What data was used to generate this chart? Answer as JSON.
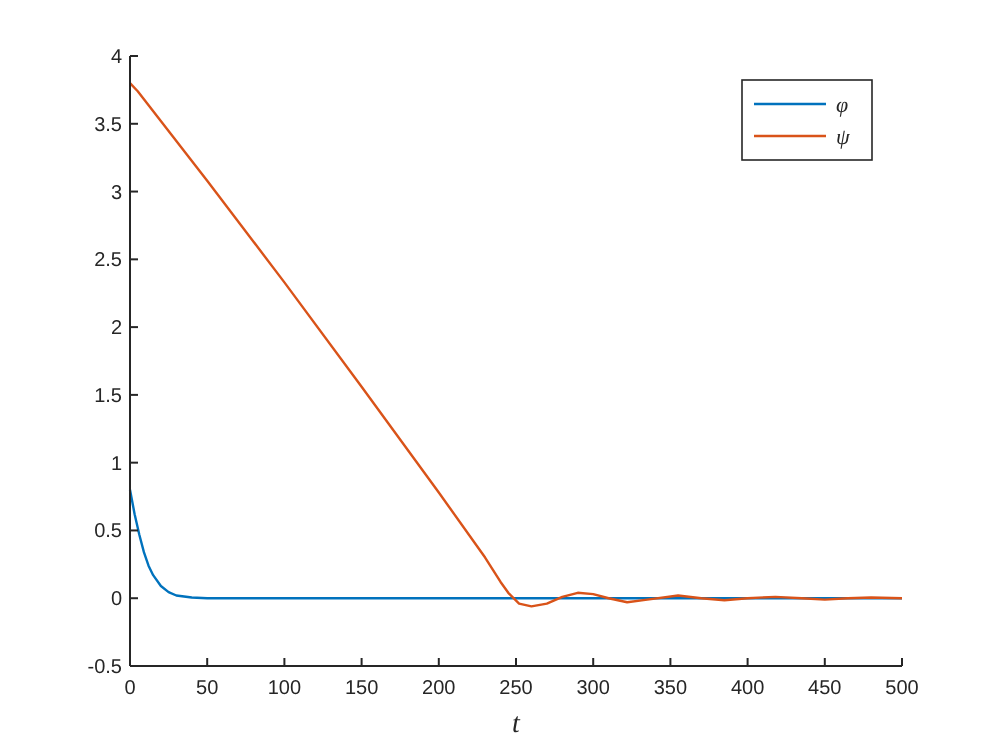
{
  "chart_data": {
    "type": "line",
    "xlabel": "t",
    "xlim": [
      0,
      500
    ],
    "ylim": [
      -0.5,
      4
    ],
    "xticks": [
      0,
      50,
      100,
      150,
      200,
      250,
      300,
      350,
      400,
      450,
      500
    ],
    "yticks": [
      -0.5,
      0,
      0.5,
      1,
      1.5,
      2,
      2.5,
      3,
      3.5,
      4
    ],
    "legend": "top right",
    "grid": false,
    "series": [
      {
        "name": "φ",
        "color": "#0072bd",
        "x": [
          0,
          3,
          6,
          9,
          12,
          15,
          20,
          25,
          30,
          40,
          50,
          100,
          200,
          300,
          400,
          500
        ],
        "values": [
          0.8,
          0.62,
          0.47,
          0.34,
          0.24,
          0.17,
          0.09,
          0.045,
          0.02,
          0.005,
          0,
          0,
          0,
          0,
          0,
          0
        ]
      },
      {
        "name": "ψ",
        "color": "#d95319",
        "x": [
          0,
          5,
          50,
          100,
          150,
          200,
          230,
          240,
          245,
          252,
          260,
          270,
          280,
          290,
          300,
          310,
          322,
          335,
          355,
          370,
          385,
          400,
          418,
          435,
          450,
          465,
          480,
          500
        ],
        "values": [
          3.8,
          3.74,
          3.08,
          2.33,
          1.56,
          0.78,
          0.3,
          0.12,
          0.04,
          -0.04,
          -0.06,
          -0.04,
          0.01,
          0.04,
          0.03,
          0,
          -0.03,
          -0.01,
          0.02,
          0,
          -0.015,
          0,
          0.01,
          0,
          -0.01,
          0,
          0.005,
          0
        ]
      }
    ]
  }
}
